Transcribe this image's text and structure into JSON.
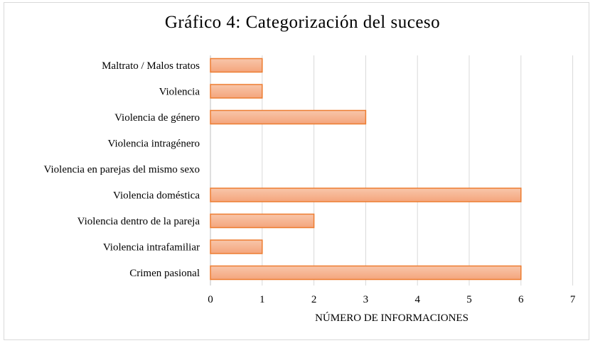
{
  "chart_data": {
    "type": "bar",
    "orientation": "horizontal",
    "title": "Gráfico 4: Categorización del suceso",
    "xlabel": "NÚMERO DE INFORMACIONES",
    "ylabel": "",
    "categories": [
      "Maltrato / Malos tratos",
      "Violencia",
      "Violencia de género",
      "Violencia intragénero",
      "Violencia en parejas del mismo sexo",
      "Violencia doméstica",
      "Violencia dentro de la pareja",
      "Violencia intrafamiliar",
      "Crimen pasional"
    ],
    "values": [
      1,
      1,
      3,
      0,
      0,
      6,
      2,
      1,
      6
    ],
    "xlim": [
      0,
      7
    ],
    "xticks": [
      "0",
      "1",
      "2",
      "3",
      "4",
      "5",
      "6",
      "7"
    ],
    "grid": "vertical",
    "legend": "none",
    "colors": {
      "bar_fill_top": "#f8c6aa",
      "bar_fill_bottom": "#f4a57c",
      "bar_stroke": "#ed7d31",
      "grid": "#d9d9d9",
      "axis": "#bfbfbf"
    }
  }
}
